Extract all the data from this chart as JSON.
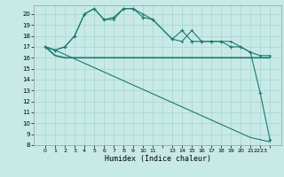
{
  "xlabel": "Humidex (Indice chaleur)",
  "x_ticks": [
    0,
    1,
    2,
    3,
    4,
    5,
    6,
    7,
    8,
    9,
    10,
    11,
    12,
    13,
    14,
    15,
    16,
    17,
    18,
    19,
    20,
    21,
    22,
    23
  ],
  "x_labels": [
    "0",
    "1",
    "2",
    "3",
    "4",
    "5",
    "6",
    "7",
    "8",
    "9",
    "10",
    "11",
    "",
    "13",
    "14",
    "15",
    "16",
    "17",
    "18",
    "19",
    "20",
    "21",
    "2223",
    ""
  ],
  "ylim": [
    8,
    20.8
  ],
  "yticks": [
    8,
    9,
    10,
    11,
    12,
    13,
    14,
    15,
    16,
    17,
    18,
    19,
    20
  ],
  "line_color": "#1a7a6e",
  "bg_color": "#c8eae6",
  "grid_color": "#a8d4d0",
  "line1_x": [
    0,
    1,
    2,
    3,
    4,
    5,
    6,
    7,
    8,
    9,
    10,
    11,
    13,
    14,
    15,
    16,
    17,
    18,
    19,
    20,
    21,
    22,
    23
  ],
  "line1_y": [
    17.0,
    16.7,
    17.0,
    18.0,
    20.0,
    20.5,
    19.5,
    19.5,
    20.5,
    20.5,
    20.0,
    19.5,
    17.7,
    17.5,
    18.5,
    17.5,
    17.5,
    17.5,
    17.5,
    17.0,
    16.5,
    16.2,
    16.2
  ],
  "line2_x": [
    0,
    1,
    2,
    3,
    4,
    5,
    6,
    7,
    8,
    9,
    10,
    11,
    13,
    14,
    15,
    16,
    17,
    18,
    19,
    20,
    21,
    22,
    23
  ],
  "line2_y": [
    17.0,
    16.2,
    16.0,
    16.0,
    16.0,
    16.0,
    16.0,
    16.0,
    16.0,
    16.0,
    16.0,
    16.0,
    16.0,
    16.0,
    16.0,
    16.0,
    16.0,
    16.0,
    16.0,
    16.0,
    16.0,
    16.0,
    16.0
  ],
  "line3_x": [
    0,
    1,
    2,
    3,
    4,
    5,
    6,
    7,
    8,
    9,
    10,
    11,
    13,
    14,
    15,
    16,
    17,
    18,
    19,
    20,
    21,
    22,
    23
  ],
  "line3_y": [
    17.0,
    16.7,
    17.0,
    18.0,
    20.0,
    20.5,
    19.5,
    19.7,
    20.5,
    20.5,
    19.7,
    19.5,
    17.7,
    18.5,
    17.5,
    17.5,
    17.5,
    17.5,
    17.0,
    17.0,
    16.5,
    12.8,
    8.5
  ],
  "line4_x": [
    0,
    1,
    2,
    3,
    4,
    5,
    6,
    7,
    8,
    9,
    10,
    11,
    13,
    14,
    15,
    16,
    17,
    18,
    19,
    20,
    21,
    22,
    23
  ],
  "line4_y": [
    17.0,
    16.7,
    16.3,
    15.9,
    15.5,
    15.1,
    14.7,
    14.3,
    13.9,
    13.5,
    13.1,
    12.7,
    11.9,
    11.5,
    11.1,
    10.7,
    10.3,
    9.9,
    9.5,
    9.1,
    8.7,
    8.5,
    8.3
  ]
}
